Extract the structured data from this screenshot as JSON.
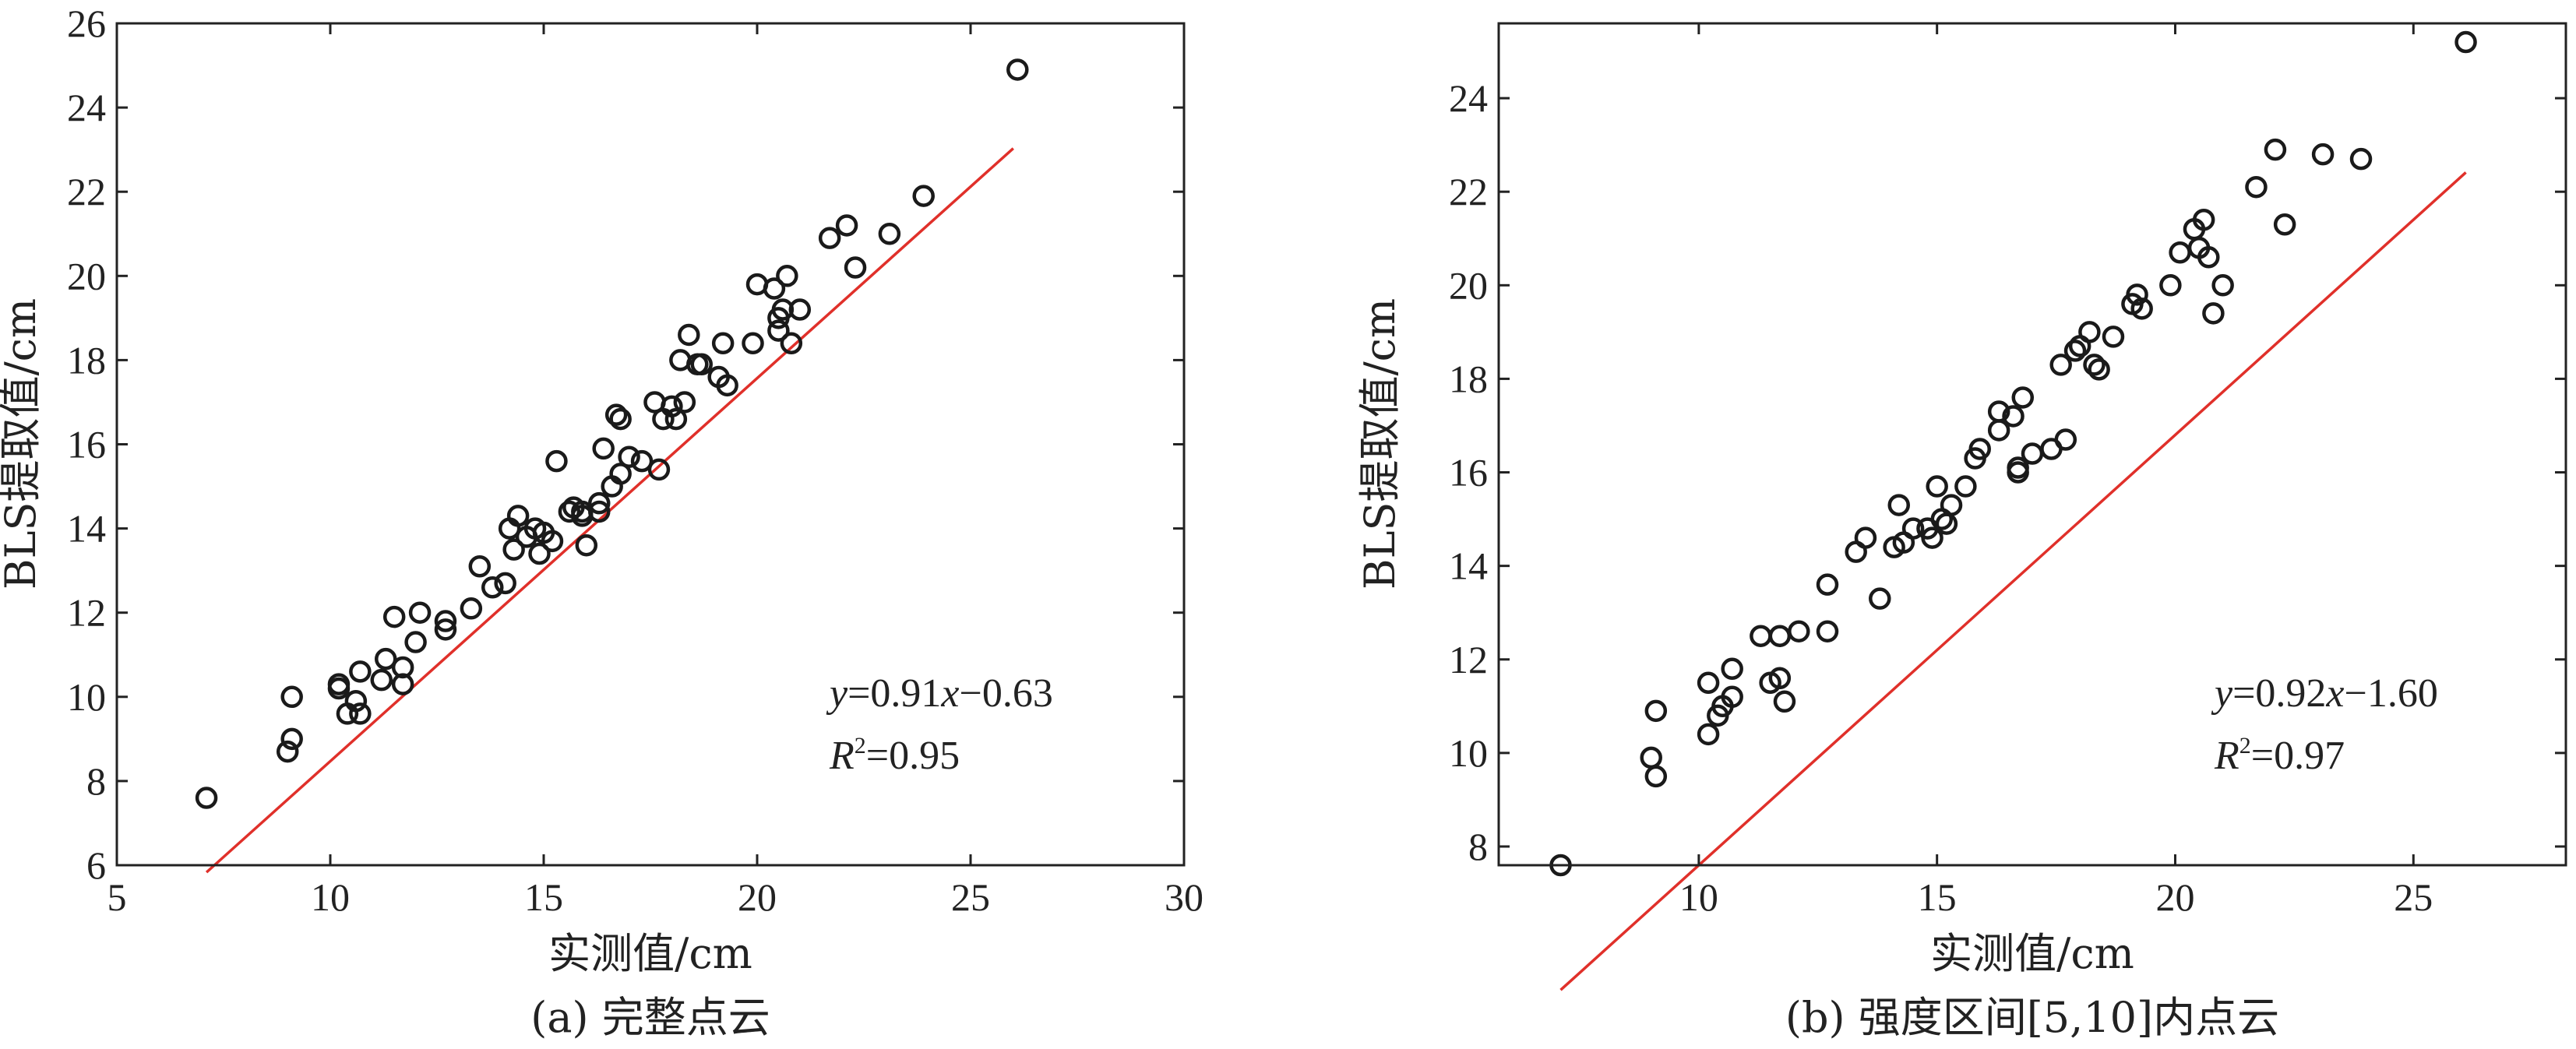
{
  "chart_data": [
    {
      "type": "scatter",
      "xlabel": "实测值/cm",
      "ylabel": "BLS提取值/cm",
      "caption": "(a) 完整点云",
      "xlim": [
        5,
        30
      ],
      "ylim": [
        6,
        26
      ],
      "x_ticks": [
        5,
        10,
        15,
        20,
        25,
        30
      ],
      "y_ticks": [
        6,
        8,
        10,
        12,
        14,
        16,
        18,
        20,
        22,
        24,
        26
      ],
      "fit": {
        "slope": 0.91,
        "intercept": -0.63,
        "x_range": [
          7.1,
          26.0
        ],
        "color": "#e0302a"
      },
      "annotation": {
        "eq_var": "y",
        "eq_mid": "=0.91",
        "eq_var2": "x",
        "eq_tail": "−0.63",
        "r2_label": "R",
        "r2_sup": "2",
        "r2_value": "=0.95"
      },
      "points": [
        [
          7.1,
          7.6
        ],
        [
          9.0,
          8.7
        ],
        [
          9.1,
          9.0
        ],
        [
          9.1,
          10.0
        ],
        [
          10.2,
          10.2
        ],
        [
          10.2,
          10.3
        ],
        [
          10.4,
          9.6
        ],
        [
          10.6,
          9.9
        ],
        [
          10.7,
          9.6
        ],
        [
          10.7,
          10.6
        ],
        [
          11.2,
          10.4
        ],
        [
          11.3,
          10.9
        ],
        [
          11.5,
          11.9
        ],
        [
          11.7,
          10.7
        ],
        [
          11.7,
          10.3
        ],
        [
          12.0,
          11.3
        ],
        [
          12.1,
          12.0
        ],
        [
          12.7,
          11.6
        ],
        [
          12.7,
          11.8
        ],
        [
          13.3,
          12.1
        ],
        [
          13.5,
          13.1
        ],
        [
          13.8,
          12.6
        ],
        [
          14.1,
          12.7
        ],
        [
          14.2,
          14.0
        ],
        [
          14.3,
          13.5
        ],
        [
          14.4,
          14.3
        ],
        [
          14.6,
          13.8
        ],
        [
          14.8,
          14.0
        ],
        [
          14.9,
          13.4
        ],
        [
          15.0,
          13.9
        ],
        [
          15.2,
          13.7
        ],
        [
          15.3,
          15.6
        ],
        [
          15.6,
          14.4
        ],
        [
          15.7,
          14.5
        ],
        [
          15.9,
          14.3
        ],
        [
          15.9,
          14.4
        ],
        [
          16.0,
          13.6
        ],
        [
          16.3,
          14.4
        ],
        [
          16.3,
          14.6
        ],
        [
          16.4,
          15.9
        ],
        [
          16.6,
          15.0
        ],
        [
          16.7,
          16.7
        ],
        [
          16.8,
          16.6
        ],
        [
          16.8,
          15.3
        ],
        [
          17.0,
          15.7
        ],
        [
          17.3,
          15.6
        ],
        [
          17.6,
          17.0
        ],
        [
          17.7,
          15.4
        ],
        [
          17.8,
          16.6
        ],
        [
          18.0,
          16.9
        ],
        [
          18.1,
          16.6
        ],
        [
          18.2,
          18.0
        ],
        [
          18.3,
          17.0
        ],
        [
          18.4,
          18.6
        ],
        [
          18.6,
          17.9
        ],
        [
          18.7,
          17.9
        ],
        [
          19.1,
          17.6
        ],
        [
          19.2,
          18.4
        ],
        [
          19.3,
          17.4
        ],
        [
          19.9,
          18.4
        ],
        [
          20.0,
          19.8
        ],
        [
          20.4,
          19.7
        ],
        [
          20.5,
          19.0
        ],
        [
          20.5,
          18.7
        ],
        [
          20.6,
          19.2
        ],
        [
          20.7,
          20.0
        ],
        [
          20.8,
          18.4
        ],
        [
          21.0,
          19.2
        ],
        [
          21.7,
          20.9
        ],
        [
          22.1,
          21.2
        ],
        [
          22.3,
          20.2
        ],
        [
          23.1,
          21.0
        ],
        [
          23.9,
          21.9
        ],
        [
          26.1,
          24.9
        ]
      ]
    },
    {
      "type": "scatter",
      "xlabel": "实测值/cm",
      "ylabel": "BLS提取值/cm",
      "caption": "(b) 强度区间[5,10]内点云",
      "xlim": [
        5.8,
        28.2
      ],
      "ylim": [
        7.6,
        25.6
      ],
      "x_ticks": [
        10,
        15,
        20,
        25
      ],
      "y_ticks": [
        8,
        10,
        12,
        14,
        16,
        18,
        20,
        22,
        24
      ],
      "fit": {
        "slope": 0.92,
        "intercept": -1.6,
        "x_range": [
          7.1,
          26.1
        ],
        "color": "#e0302a"
      },
      "annotation": {
        "eq_var": "y",
        "eq_mid": "=0.92",
        "eq_var2": "x",
        "eq_tail": "−1.60",
        "r2_label": "R",
        "r2_sup": "2",
        "r2_value": "=0.97"
      },
      "points": [
        [
          7.1,
          7.6
        ],
        [
          9.0,
          9.9
        ],
        [
          9.1,
          9.5
        ],
        [
          9.1,
          10.9
        ],
        [
          10.2,
          11.5
        ],
        [
          10.2,
          10.4
        ],
        [
          10.4,
          10.8
        ],
        [
          10.5,
          11.0
        ],
        [
          10.7,
          11.2
        ],
        [
          10.7,
          11.8
        ],
        [
          11.3,
          12.5
        ],
        [
          11.5,
          11.5
        ],
        [
          11.7,
          12.5
        ],
        [
          11.7,
          11.6
        ],
        [
          11.8,
          11.1
        ],
        [
          12.1,
          12.6
        ],
        [
          12.7,
          12.6
        ],
        [
          12.7,
          13.6
        ],
        [
          13.3,
          14.3
        ],
        [
          13.5,
          14.6
        ],
        [
          13.8,
          13.3
        ],
        [
          14.1,
          14.4
        ],
        [
          14.2,
          15.3
        ],
        [
          14.3,
          14.5
        ],
        [
          14.5,
          14.8
        ],
        [
          14.8,
          14.8
        ],
        [
          14.9,
          14.6
        ],
        [
          15.0,
          15.7
        ],
        [
          15.1,
          15.0
        ],
        [
          15.2,
          14.9
        ],
        [
          15.3,
          15.3
        ],
        [
          15.6,
          15.7
        ],
        [
          15.8,
          16.3
        ],
        [
          15.9,
          16.5
        ],
        [
          16.3,
          16.9
        ],
        [
          16.3,
          17.3
        ],
        [
          16.6,
          17.2
        ],
        [
          16.7,
          16.0
        ],
        [
          16.7,
          16.1
        ],
        [
          16.8,
          17.6
        ],
        [
          17.0,
          16.4
        ],
        [
          17.4,
          16.5
        ],
        [
          17.6,
          18.3
        ],
        [
          17.7,
          16.7
        ],
        [
          17.9,
          18.6
        ],
        [
          18.0,
          18.7
        ],
        [
          18.2,
          19.0
        ],
        [
          18.3,
          18.3
        ],
        [
          18.4,
          18.2
        ],
        [
          18.7,
          18.9
        ],
        [
          19.1,
          19.6
        ],
        [
          19.2,
          19.8
        ],
        [
          19.3,
          19.5
        ],
        [
          19.9,
          20.0
        ],
        [
          20.1,
          20.7
        ],
        [
          20.4,
          21.2
        ],
        [
          20.5,
          20.8
        ],
        [
          20.6,
          21.4
        ],
        [
          20.7,
          20.6
        ],
        [
          20.8,
          19.4
        ],
        [
          21.0,
          20.0
        ],
        [
          21.7,
          22.1
        ],
        [
          22.1,
          22.9
        ],
        [
          22.3,
          21.3
        ],
        [
          23.1,
          22.8
        ],
        [
          23.9,
          22.7
        ],
        [
          26.1,
          25.2
        ]
      ]
    }
  ]
}
